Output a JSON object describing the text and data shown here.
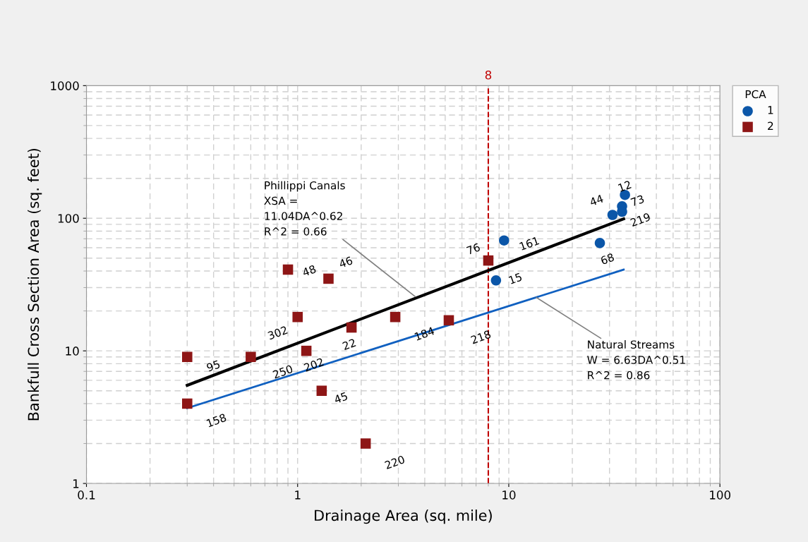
{
  "chart_data": {
    "type": "scatter",
    "xlabel": "Drainage Area (sq. mile)",
    "ylabel": "Bankfull Cross Section Area (sq. feet)",
    "legend_title": "PCA",
    "legend": "right",
    "grid": true,
    "log": "xy",
    "xlim": [
      0.1,
      100
    ],
    "xticks": [
      0.1,
      1,
      10,
      100
    ],
    "ylim": [
      1,
      1000
    ],
    "yticks": [
      1,
      10,
      100,
      1000
    ],
    "series": [
      {
        "name": "1",
        "marker": "circle",
        "color": "#0b56a8",
        "x": [
          9.5,
          8.7,
          27,
          31,
          34.4,
          34.4,
          35.5
        ],
        "values": [
          68,
          34,
          65,
          106,
          123,
          112,
          150
        ]
      },
      {
        "name": "2",
        "marker": "square",
        "color": "#8e1616",
        "x": [
          0.3,
          0.3,
          0.6,
          0.9,
          1.0,
          1.1,
          1.4,
          1.3,
          1.8,
          2.1,
          2.9,
          5.2,
          8.0
        ],
        "values": [
          9,
          4,
          9,
          41,
          18,
          10,
          35,
          5,
          15,
          2,
          18,
          17,
          48
        ]
      },
      {
        "type": "line",
        "color": "#000000",
        "x": [
          0.3,
          35
        ],
        "values": [
          5.5,
          99
        ]
      },
      {
        "type": "line",
        "color": "#1060c0",
        "x": [
          0.3,
          35
        ],
        "values": [
          3.7,
          41
        ]
      }
    ],
    "ref_lines": [
      {
        "axis": "x",
        "value": 8,
        "label": "8",
        "color": "#c00000",
        "line_style": "dashed"
      }
    ],
    "annotations": [
      {
        "text": "Phillippi Canals\nXSA =\n11.04DA^0.62\nR^2 = 0.66",
        "x": 3.6,
        "y": 25.7
      },
      {
        "text": "Natural Streams\nW = 6.63DA^0.51\nR^2 = 0.86",
        "x": 13.5,
        "y": 25.3
      },
      {
        "text": "161",
        "x": 9.5,
        "y": 68
      },
      {
        "text": "15",
        "x": 8.7,
        "y": 34
      },
      {
        "text": "68",
        "x": 27,
        "y": 65
      },
      {
        "text": "44",
        "x": 31,
        "y": 106
      },
      {
        "text": "73",
        "x": 34.4,
        "y": 123
      },
      {
        "text": "219",
        "x": 34.4,
        "y": 112
      },
      {
        "text": "12",
        "x": 35.5,
        "y": 150
      },
      {
        "text": "95",
        "x": 0.3,
        "y": 9
      },
      {
        "text": "158",
        "x": 0.3,
        "y": 4
      },
      {
        "text": "250",
        "x": 0.6,
        "y": 9
      },
      {
        "text": "48",
        "x": 0.9,
        "y": 41
      },
      {
        "text": "302",
        "x": 1.0,
        "y": 18
      },
      {
        "text": "202",
        "x": 1.1,
        "y": 10
      },
      {
        "text": "46",
        "x": 1.4,
        "y": 35
      },
      {
        "text": "45",
        "x": 1.3,
        "y": 5
      },
      {
        "text": "22",
        "x": 1.8,
        "y": 15
      },
      {
        "text": "220",
        "x": 2.1,
        "y": 2
      },
      {
        "text": "184",
        "x": 2.9,
        "y": 18
      },
      {
        "text": "218",
        "x": 5.2,
        "y": 17
      },
      {
        "text": "76",
        "x": 8.0,
        "y": 48
      }
    ]
  }
}
